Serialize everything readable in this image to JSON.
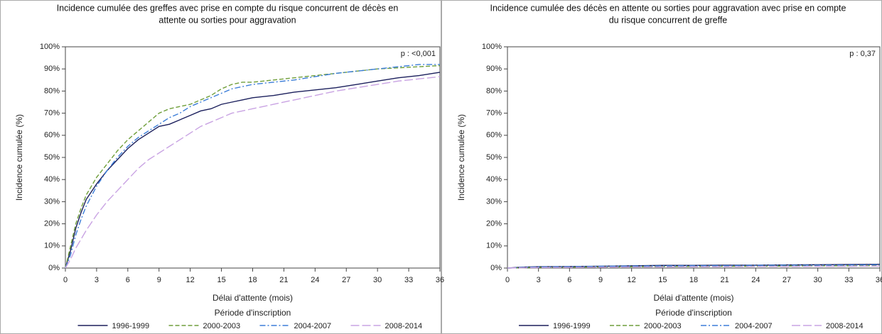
{
  "chart_data": [
    {
      "type": "line",
      "title": [
        "Incidence cumulée des greffes avec prise en compte du risque concurrent de décès en",
        "attente ou sorties pour aggravation"
      ],
      "annotation": "p : <0,001",
      "x_label": "Délai d'attente (mois)",
      "y_label": "Incidence cumulée (%)",
      "legend_title": "Période d'inscription",
      "legend": "bottom",
      "x": [
        0,
        0.5,
        1,
        1.5,
        2,
        3,
        4,
        5,
        6,
        7,
        8,
        9,
        10,
        11,
        12,
        13,
        14,
        15,
        16,
        17,
        18,
        20,
        22,
        24,
        26,
        28,
        30,
        32,
        34,
        36
      ],
      "series": [
        {
          "name": "1996-1999",
          "color": "#1b1f5c",
          "dash": "solid",
          "values": [
            0,
            8,
            18,
            25,
            31,
            38,
            44,
            49,
            54,
            58,
            61,
            64,
            65,
            67,
            69,
            71,
            72,
            74,
            75,
            76,
            77,
            78,
            79.5,
            80.5,
            81.5,
            83,
            84.5,
            86,
            87,
            88.5
          ]
        },
        {
          "name": "2000-2003",
          "color": "#6f9e3a",
          "dash": "dashed",
          "values": [
            0,
            10,
            20,
            27,
            33,
            41,
            47,
            53,
            58,
            62,
            66,
            70,
            72,
            73,
            74,
            76,
            78,
            81,
            83,
            84,
            84,
            85,
            86,
            87,
            88,
            89,
            90,
            90.5,
            91,
            91.5
          ]
        },
        {
          "name": "2004-2007",
          "color": "#3b7dd8",
          "dash": "dashdot",
          "values": [
            0,
            6,
            15,
            22,
            28,
            37,
            44,
            50,
            55,
            59,
            62,
            65,
            68,
            70,
            73,
            75,
            77,
            79,
            81,
            82,
            83,
            84,
            85,
            86.5,
            88,
            89,
            90,
            91,
            92,
            92
          ]
        },
        {
          "name": "2008-2014",
          "color": "#c9a3e3",
          "dash": "longdash",
          "values": [
            0,
            4,
            9,
            13,
            17,
            24,
            30,
            35,
            40,
            45,
            49,
            52,
            55,
            58,
            61,
            64,
            66,
            68,
            70,
            71,
            72,
            74,
            76,
            78,
            80,
            81.5,
            83,
            84.5,
            85.5,
            86.5
          ]
        }
      ],
      "xlim": [
        0,
        36
      ],
      "xticks": [
        0,
        3,
        6,
        9,
        12,
        15,
        18,
        21,
        24,
        27,
        30,
        33,
        36
      ],
      "ylim": [
        0,
        100
      ],
      "yticks": [
        {
          "value": 0,
          "label": "0%"
        },
        {
          "value": 10,
          "label": "10%"
        },
        {
          "value": 20,
          "label": "20%"
        },
        {
          "value": 30,
          "label": "30%"
        },
        {
          "value": 40,
          "label": "40%"
        },
        {
          "value": 50,
          "label": "50%"
        },
        {
          "value": 60,
          "label": "60%"
        },
        {
          "value": 70,
          "label": "70%"
        },
        {
          "value": 80,
          "label": "80%"
        },
        {
          "value": 90,
          "label": "90%"
        },
        {
          "value": 100,
          "label": "100%"
        }
      ]
    },
    {
      "type": "line",
      "title": [
        "Incidence cumulée des décès en attente ou sorties pour aggravation avec prise en compte",
        "du risque concurrent de greffe"
      ],
      "annotation": "p : 0,37",
      "x_label": "Délai d'attente (mois)",
      "y_label": "Incidence cumulée (%)",
      "legend_title": "Période d'inscription",
      "legend": "bottom",
      "x": [
        0,
        1,
        2,
        3,
        6,
        9,
        12,
        15,
        18,
        21,
        24,
        27,
        30,
        33,
        36
      ],
      "series": [
        {
          "name": "1996-1999",
          "color": "#1b1f5c",
          "dash": "solid",
          "values": [
            0,
            0.3,
            0.5,
            0.6,
            0.7,
            0.8,
            1,
            1.2,
            1.2,
            1.3,
            1.3,
            1.4,
            1.5,
            1.6,
            1.7
          ]
        },
        {
          "name": "2000-2003",
          "color": "#6f9e3a",
          "dash": "dashed",
          "values": [
            0,
            0.1,
            0.2,
            0.3,
            0.4,
            0.5,
            0.6,
            0.7,
            0.7,
            0.8,
            0.8,
            0.9,
            1,
            1,
            1.1
          ]
        },
        {
          "name": "2004-2007",
          "color": "#3b7dd8",
          "dash": "dashdot",
          "values": [
            0,
            0.2,
            0.4,
            0.5,
            0.6,
            0.8,
            0.9,
            1,
            1.1,
            1.1,
            1.2,
            1.3,
            1.3,
            1.4,
            1.5
          ]
        },
        {
          "name": "2008-2014",
          "color": "#c9a3e3",
          "dash": "longdash",
          "values": [
            0,
            0.1,
            0.2,
            0.2,
            0.3,
            0.4,
            0.5,
            0.5,
            0.6,
            0.6,
            0.7,
            0.7,
            0.8,
            0.8,
            0.9
          ]
        }
      ],
      "xlim": [
        0,
        36
      ],
      "xticks": [
        0,
        3,
        6,
        9,
        12,
        15,
        18,
        21,
        24,
        27,
        30,
        33,
        36
      ],
      "ylim": [
        0,
        100
      ],
      "yticks": [
        {
          "value": 0,
          "label": "0%"
        },
        {
          "value": 10,
          "label": "10%"
        },
        {
          "value": 20,
          "label": "20%"
        },
        {
          "value": 30,
          "label": "30%"
        },
        {
          "value": 40,
          "label": "40%"
        },
        {
          "value": 50,
          "label": "50%"
        },
        {
          "value": 60,
          "label": "60%"
        },
        {
          "value": 70,
          "label": "70%"
        },
        {
          "value": 80,
          "label": "80%"
        },
        {
          "value": 90,
          "label": "90%"
        },
        {
          "value": 100,
          "label": "100%"
        }
      ]
    }
  ]
}
